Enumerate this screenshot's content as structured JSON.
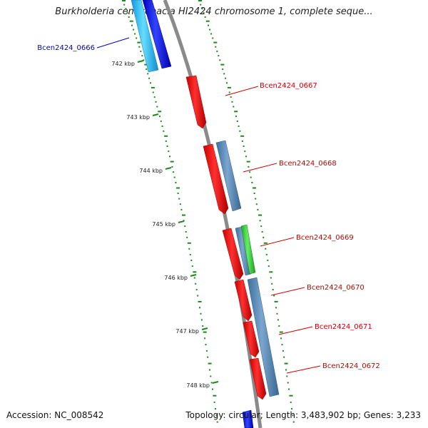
{
  "title": "Burkholderia cenocepacia HI2424 chromosome 1, complete seque...",
  "accession": "Accession: NC_008542",
  "topology": "Topology: circular; Length: 3,483,902 bp; Genes: 3,233",
  "scale_labels": [
    "742 kbp",
    "743 kbp",
    "744 kbp",
    "745 kbp",
    "746 kbp",
    "747 kbp",
    "748 kbp"
  ],
  "gene_labels": [
    "Bcen2424_0666",
    "Bcen2424_0667",
    "Bcen2424_0668",
    "Bcen2424_0669",
    "Bcen2424_0670",
    "Bcen2424_0671",
    "Bcen2424_0672"
  ],
  "colors": {
    "backbone": "#8a8a8a",
    "tick": "#1a8a1a",
    "label_blue": "#0000cc",
    "label_red": "#cc0000",
    "feature_red": "#ee0000",
    "feature_steel": "#4f86b8",
    "feature_green": "#33cc33",
    "feature_blue": "#0000ee",
    "feature_cyan": "#22bbee"
  }
}
